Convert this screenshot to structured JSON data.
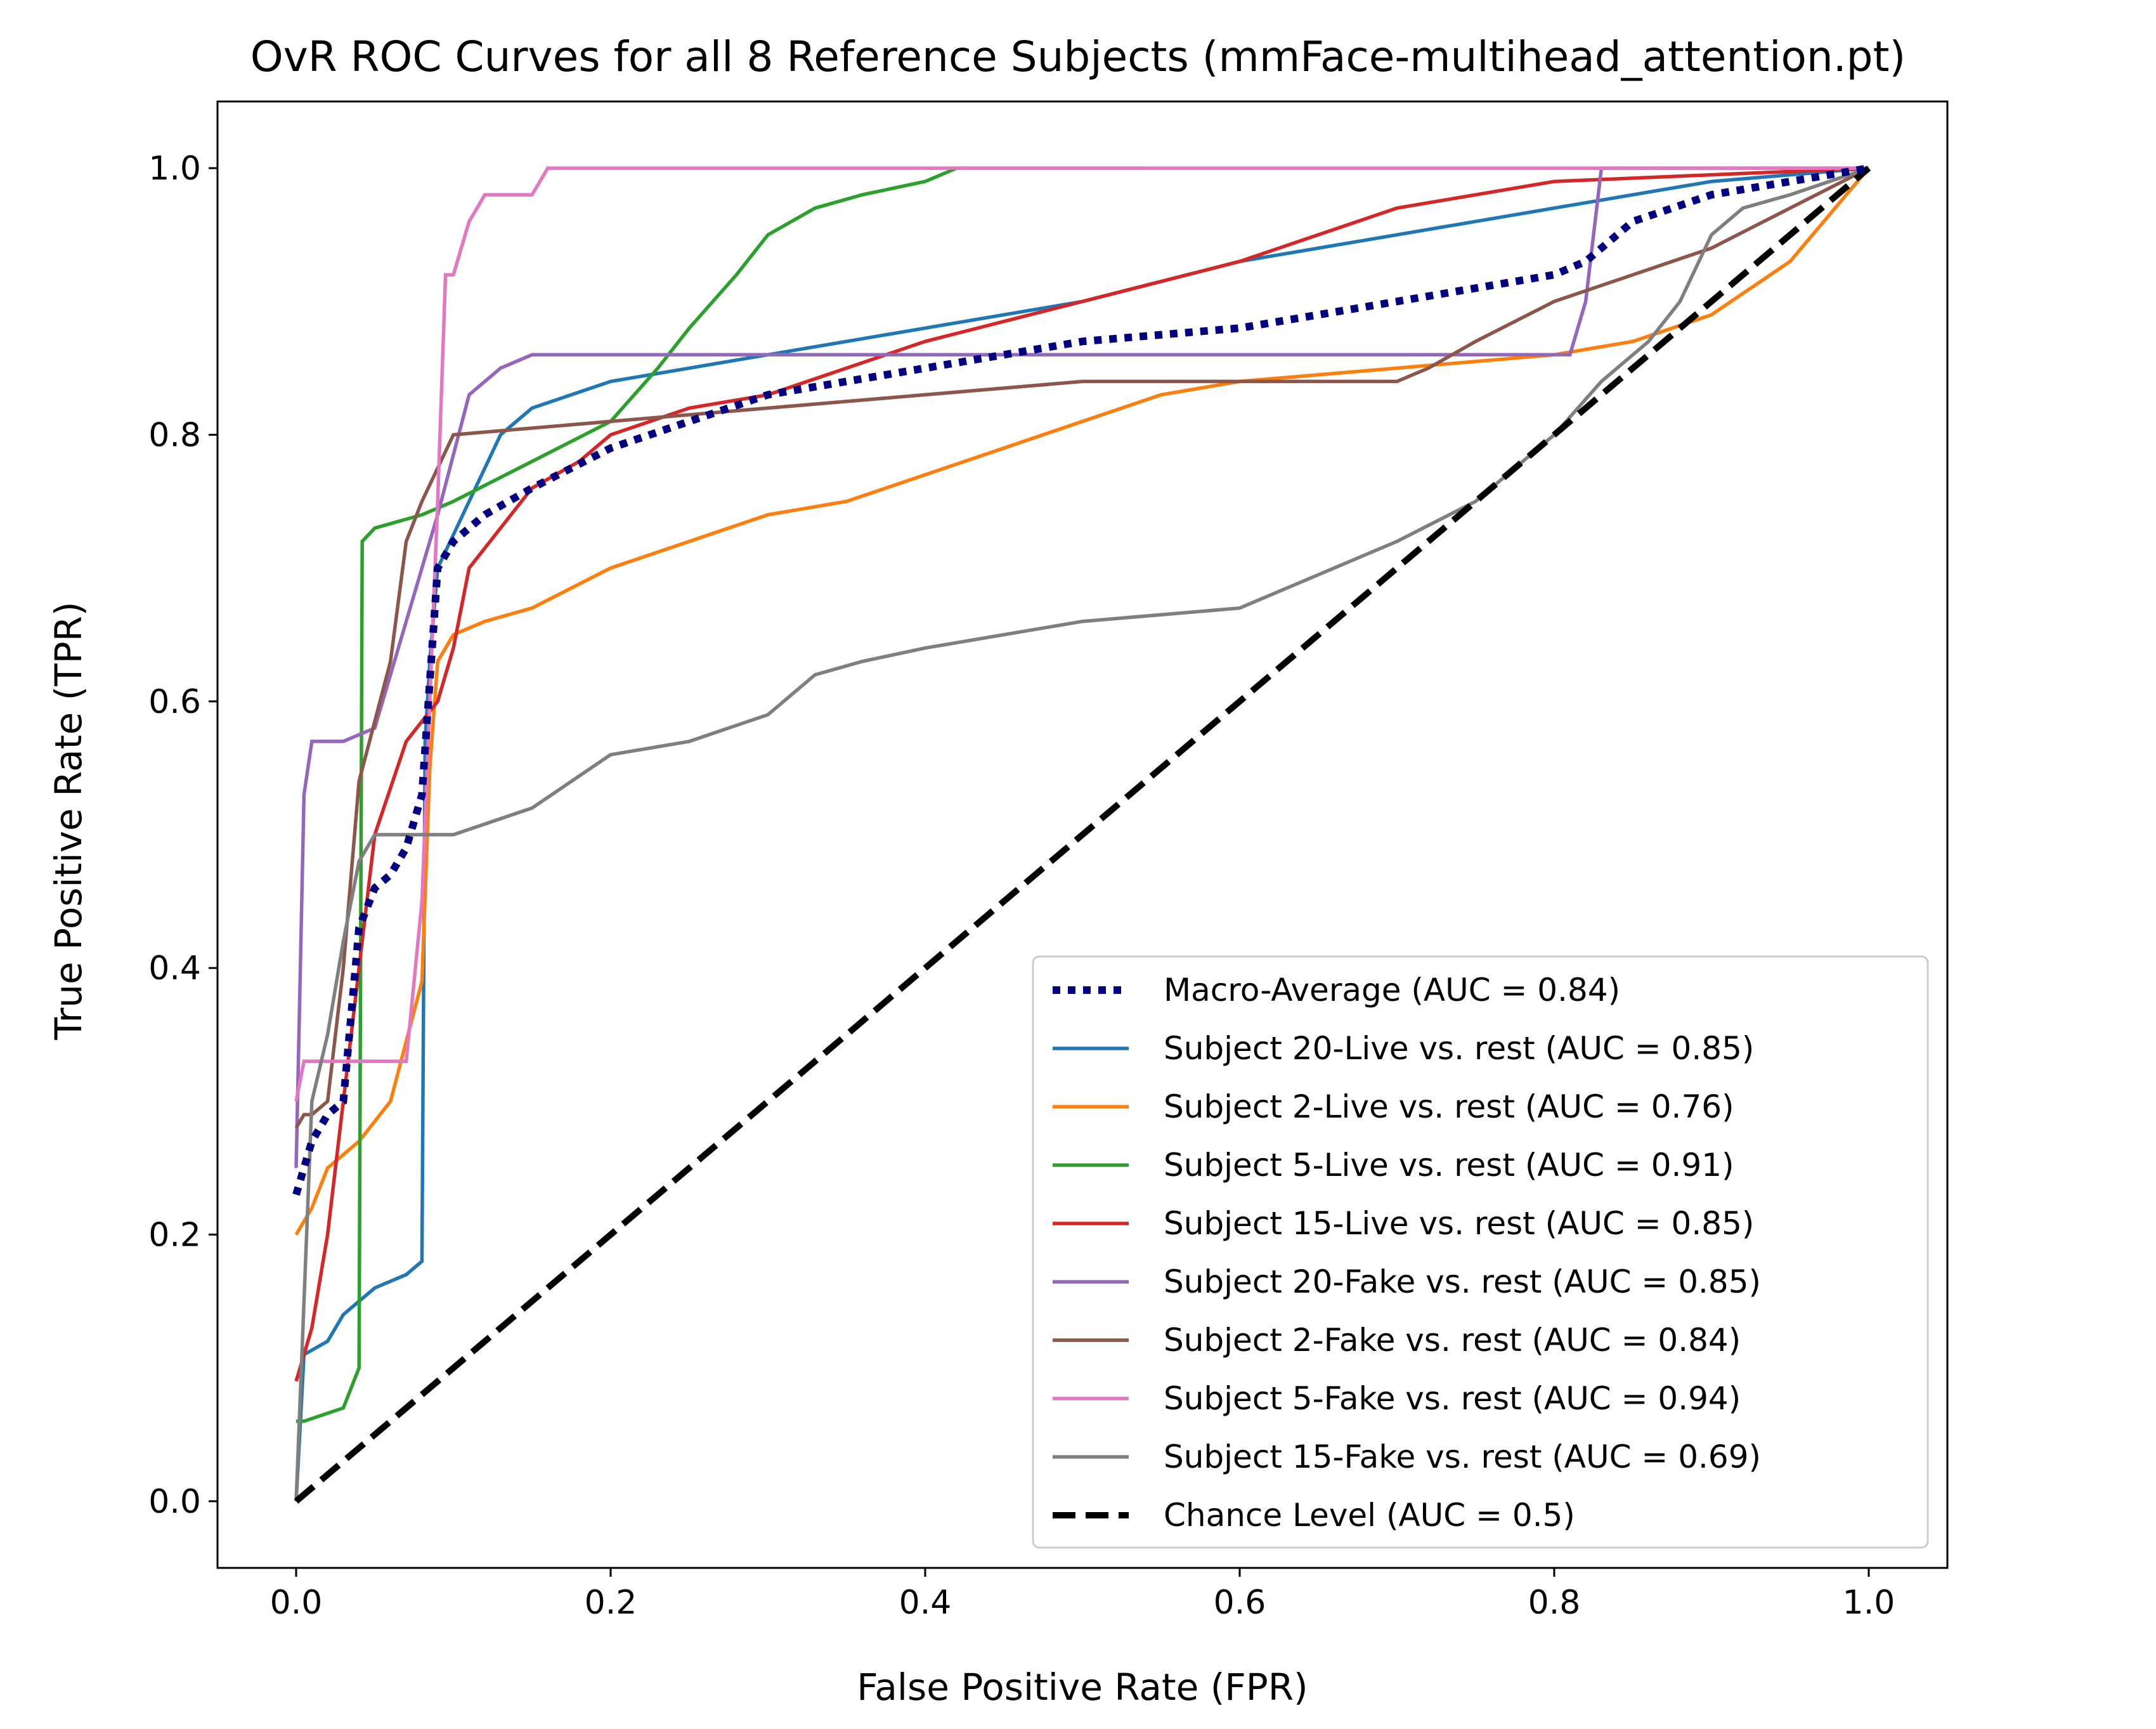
{
  "chart_data": {
    "type": "line",
    "title": "OvR ROC Curves for all 8 Reference Subjects (mmFace-multihead_attention.pt)",
    "xlabel": "False Positive Rate (FPR)",
    "ylabel": "True Positive Rate (TPR)",
    "xlim": [
      -0.05,
      1.05
    ],
    "ylim": [
      -0.05,
      1.05
    ],
    "xticks": [
      "0.0",
      "0.2",
      "0.4",
      "0.6",
      "0.8",
      "1.0"
    ],
    "yticks": [
      "0.0",
      "0.2",
      "0.4",
      "0.6",
      "0.8",
      "1.0"
    ],
    "grid": false,
    "legend_position": "lower right",
    "series": [
      {
        "name": "Macro-Average (AUC = 0.84)",
        "color": "#000080",
        "style": "dotted",
        "x": [
          0,
          0.01,
          0.02,
          0.03,
          0.04,
          0.05,
          0.06,
          0.07,
          0.08,
          0.09,
          0.1,
          0.12,
          0.15,
          0.2,
          0.25,
          0.3,
          0.4,
          0.5,
          0.6,
          0.7,
          0.75,
          0.8,
          0.82,
          0.85,
          0.9,
          1.0
        ],
        "y": [
          0.23,
          0.27,
          0.29,
          0.3,
          0.43,
          0.46,
          0.47,
          0.49,
          0.53,
          0.7,
          0.72,
          0.74,
          0.76,
          0.79,
          0.81,
          0.83,
          0.85,
          0.87,
          0.88,
          0.9,
          0.91,
          0.92,
          0.93,
          0.96,
          0.98,
          1.0
        ]
      },
      {
        "name": "Subject 20-Live vs. rest (AUC = 0.85)",
        "color": "#1f77b4",
        "style": "solid",
        "x": [
          0,
          0.005,
          0.02,
          0.03,
          0.05,
          0.07,
          0.08,
          0.082,
          0.085,
          0.09,
          0.11,
          0.13,
          0.15,
          0.2,
          0.25,
          0.3,
          0.4,
          0.5,
          0.6,
          0.7,
          0.8,
          0.85,
          0.9,
          1.0
        ],
        "y": [
          0,
          0.11,
          0.12,
          0.14,
          0.16,
          0.17,
          0.18,
          0.57,
          0.63,
          0.7,
          0.75,
          0.8,
          0.82,
          0.84,
          0.85,
          0.86,
          0.88,
          0.9,
          0.93,
          0.95,
          0.97,
          0.98,
          0.99,
          1.0
        ]
      },
      {
        "name": "Subject 2-Live vs. rest (AUC = 0.76)",
        "color": "#ff7f0e",
        "style": "solid",
        "x": [
          0,
          0.01,
          0.02,
          0.04,
          0.06,
          0.08,
          0.085,
          0.09,
          0.1,
          0.12,
          0.15,
          0.2,
          0.25,
          0.3,
          0.35,
          0.4,
          0.45,
          0.5,
          0.55,
          0.6,
          0.7,
          0.8,
          0.85,
          0.9,
          0.95,
          1.0
        ],
        "y": [
          0.2,
          0.22,
          0.25,
          0.27,
          0.3,
          0.39,
          0.55,
          0.63,
          0.65,
          0.66,
          0.67,
          0.7,
          0.72,
          0.74,
          0.75,
          0.77,
          0.79,
          0.81,
          0.83,
          0.84,
          0.85,
          0.86,
          0.87,
          0.89,
          0.93,
          1.0
        ]
      },
      {
        "name": "Subject 5-Live vs. rest (AUC = 0.91)",
        "color": "#2ca02c",
        "style": "solid",
        "x": [
          0,
          0.005,
          0.03,
          0.04,
          0.042,
          0.05,
          0.08,
          0.1,
          0.15,
          0.2,
          0.23,
          0.25,
          0.28,
          0.3,
          0.33,
          0.36,
          0.4,
          0.42,
          0.45,
          0.5,
          0.54
        ],
        "y": [
          0.06,
          0.06,
          0.07,
          0.1,
          0.72,
          0.73,
          0.74,
          0.75,
          0.78,
          0.81,
          0.85,
          0.88,
          0.92,
          0.95,
          0.97,
          0.98,
          0.99,
          1.0,
          1.0,
          1.0,
          1.0
        ]
      },
      {
        "name": "Subject 15-Live vs. rest (AUC = 0.85)",
        "color": "#d62728",
        "style": "solid",
        "x": [
          0,
          0.01,
          0.02,
          0.03,
          0.05,
          0.07,
          0.09,
          0.1,
          0.11,
          0.13,
          0.15,
          0.18,
          0.2,
          0.25,
          0.3,
          0.35,
          0.4,
          0.5,
          0.6,
          0.7,
          0.8,
          1.0
        ],
        "y": [
          0.09,
          0.13,
          0.2,
          0.3,
          0.5,
          0.57,
          0.6,
          0.64,
          0.7,
          0.73,
          0.76,
          0.78,
          0.8,
          0.82,
          0.83,
          0.85,
          0.87,
          0.9,
          0.93,
          0.97,
          0.99,
          1.0
        ]
      },
      {
        "name": "Subject 20-Fake vs. rest (AUC = 0.85)",
        "color": "#9467bd",
        "style": "solid",
        "x": [
          0,
          0.005,
          0.01,
          0.03,
          0.05,
          0.07,
          0.09,
          0.11,
          0.13,
          0.15,
          0.2,
          0.4,
          0.6,
          0.8,
          0.81,
          0.82,
          0.83,
          1.0
        ],
        "y": [
          0.25,
          0.53,
          0.57,
          0.57,
          0.58,
          0.66,
          0.74,
          0.83,
          0.85,
          0.86,
          0.86,
          0.86,
          0.86,
          0.86,
          0.86,
          0.9,
          1.0,
          1.0
        ]
      },
      {
        "name": "Subject 2-Fake vs. rest (AUC = 0.84)",
        "color": "#8c564b",
        "style": "solid",
        "x": [
          0,
          0.005,
          0.01,
          0.02,
          0.03,
          0.04,
          0.06,
          0.07,
          0.08,
          0.1,
          0.2,
          0.3,
          0.5,
          0.7,
          0.72,
          0.75,
          0.8,
          0.9,
          0.95,
          1.0
        ],
        "y": [
          0.28,
          0.29,
          0.29,
          0.3,
          0.4,
          0.54,
          0.63,
          0.72,
          0.75,
          0.8,
          0.81,
          0.82,
          0.84,
          0.84,
          0.85,
          0.87,
          0.9,
          0.94,
          0.97,
          1.0
        ]
      },
      {
        "name": "Subject 5-Fake vs. rest (AUC = 0.94)",
        "color": "#e377c2",
        "style": "solid",
        "x": [
          0,
          0.005,
          0.07,
          0.08,
          0.09,
          0.095,
          0.1,
          0.11,
          0.12,
          0.14,
          0.15,
          0.16,
          0.2,
          0.4,
          0.6,
          0.8,
          1.0
        ],
        "y": [
          0.3,
          0.33,
          0.33,
          0.45,
          0.75,
          0.92,
          0.92,
          0.96,
          0.98,
          0.98,
          0.98,
          1.0,
          1.0,
          1.0,
          1.0,
          1.0,
          1.0
        ]
      },
      {
        "name": "Subject 15-Fake vs. rest (AUC = 0.69)",
        "color": "#7f7f7f",
        "style": "solid",
        "x": [
          0,
          0.01,
          0.02,
          0.03,
          0.04,
          0.05,
          0.1,
          0.15,
          0.2,
          0.25,
          0.3,
          0.33,
          0.36,
          0.4,
          0.5,
          0.6,
          0.7,
          0.75,
          0.8,
          0.83,
          0.86,
          0.88,
          0.9,
          0.92,
          0.95,
          1.0
        ],
        "y": [
          0,
          0.3,
          0.35,
          0.42,
          0.48,
          0.5,
          0.5,
          0.52,
          0.56,
          0.57,
          0.59,
          0.62,
          0.63,
          0.64,
          0.66,
          0.67,
          0.72,
          0.75,
          0.8,
          0.84,
          0.87,
          0.9,
          0.95,
          0.97,
          0.98,
          1.0
        ]
      },
      {
        "name": "Chance Level (AUC = 0.5)",
        "color": "#000000",
        "style": "dashed",
        "x": [
          0,
          1
        ],
        "y": [
          0,
          1
        ]
      }
    ]
  }
}
